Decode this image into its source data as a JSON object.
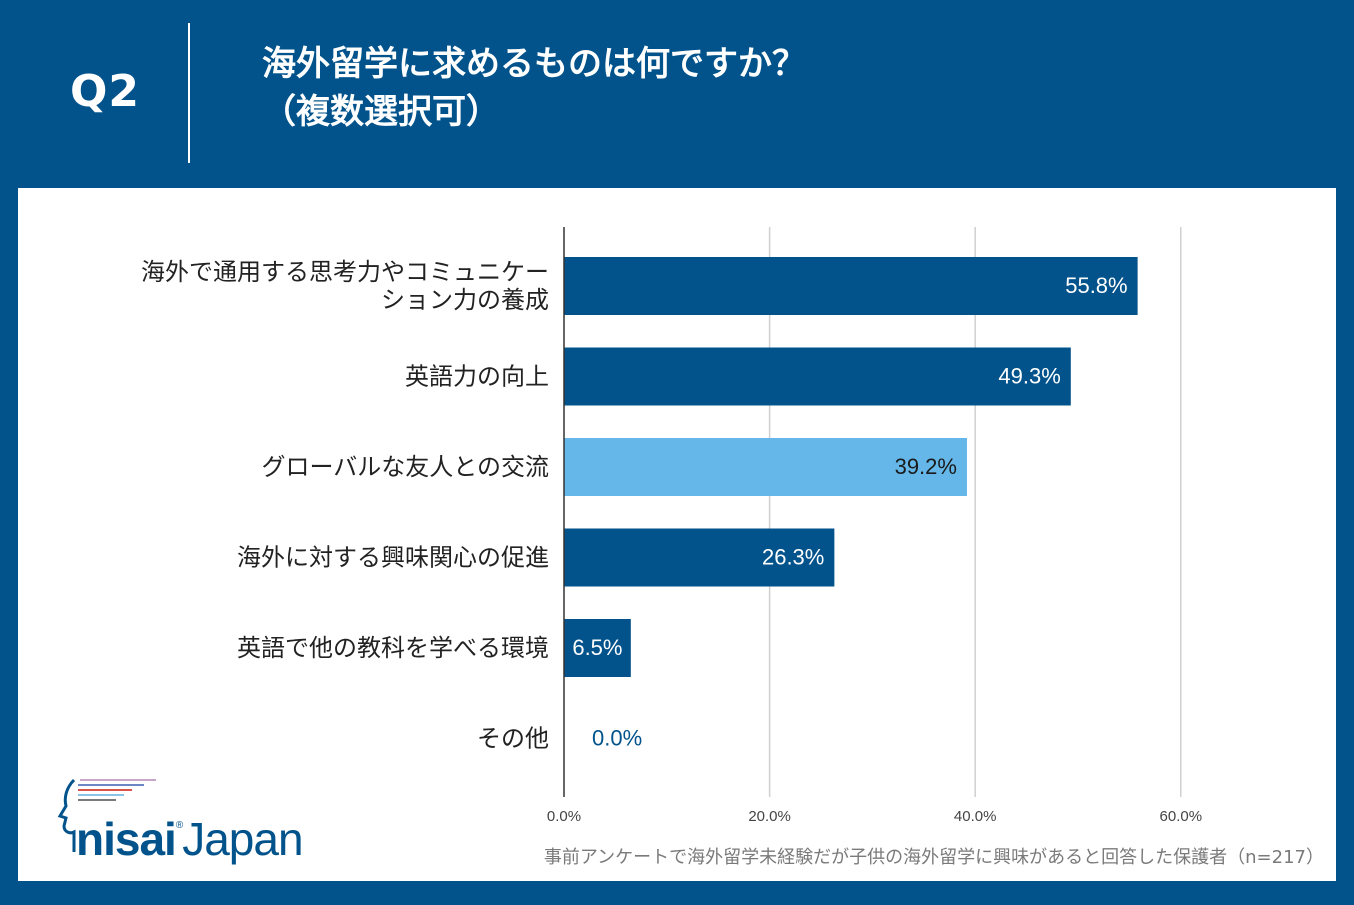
{
  "header": {
    "question_number": "Q2",
    "title_line1": "海外留学に求めるものは何ですか？",
    "title_line2": "（複数選択可）"
  },
  "logo": {
    "part1": "nisai",
    "registered": "®",
    "part2": "Japan"
  },
  "footnote": "事前アンケートで海外留学未経験だが子供の海外留学に興味があると回答した保護者（n=217）",
  "colors": {
    "background": "#02538b",
    "bar_primary": "#02538b",
    "bar_highlight": "#64b7e8",
    "grid": "#d0d0d0"
  },
  "chart_data": {
    "type": "bar",
    "orientation": "horizontal",
    "title": "海外留学に求めるものは何ですか？（複数選択可）",
    "categories": [
      [
        "海外で通用する思考力やコミュニケー",
        "ション力の養成"
      ],
      [
        "英語力の向上"
      ],
      [
        "グローバルな友人との交流"
      ],
      [
        "海外に対する興味関心の促進"
      ],
      [
        "英語で他の教科を学べる環境"
      ],
      [
        "その他"
      ]
    ],
    "values": [
      55.8,
      49.3,
      39.2,
      26.3,
      6.5,
      0.0
    ],
    "data_labels": [
      "55.8%",
      "49.3%",
      "39.2%",
      "26.3%",
      "6.5%",
      "0.0%"
    ],
    "highlight_index": 2,
    "xlim": [
      0,
      70
    ],
    "xticks": [
      0,
      20,
      40,
      60
    ],
    "xtick_labels": [
      "0.0%",
      "20.0%",
      "40.0%",
      "60.0%"
    ],
    "grid": true,
    "xlabel": "",
    "ylabel": ""
  }
}
